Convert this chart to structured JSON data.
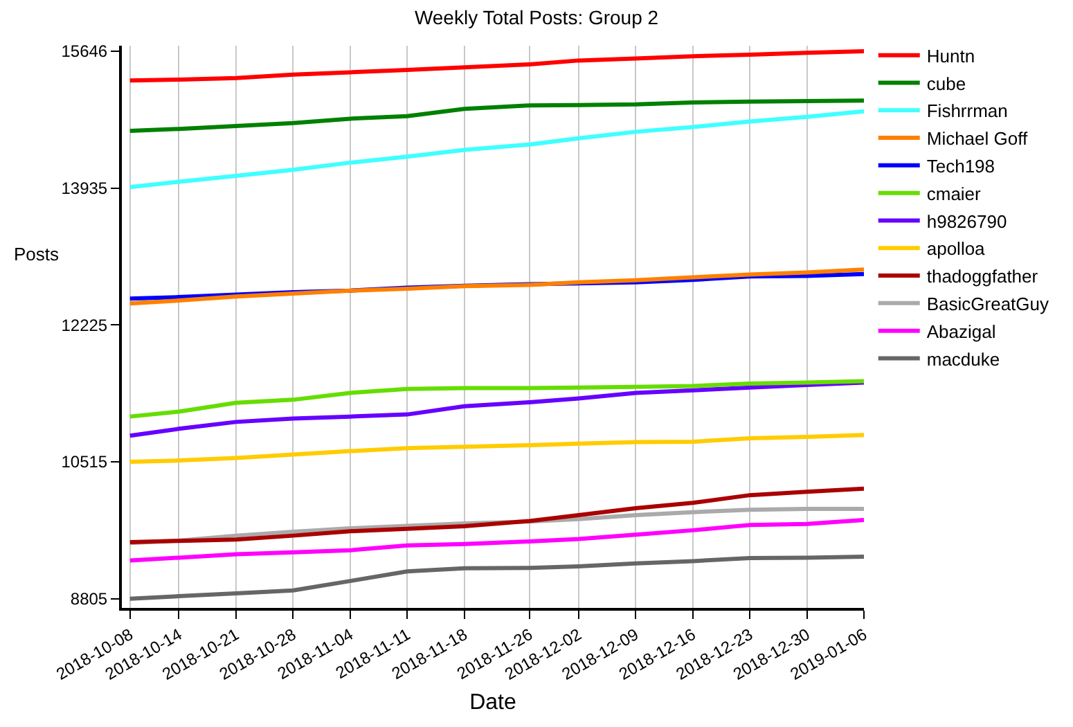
{
  "chart_data": {
    "type": "line",
    "title": "Weekly Total Posts: Group 2",
    "xlabel": "Date",
    "ylabel": "Posts",
    "x": [
      "2018-10-08",
      "2018-10-14",
      "2018-10-21",
      "2018-10-28",
      "2018-11-04",
      "2018-11-11",
      "2018-11-18",
      "2018-11-26",
      "2018-12-02",
      "2018-12-09",
      "2018-12-16",
      "2018-12-23",
      "2018-12-30",
      "2019-01-06"
    ],
    "xlim": [
      "2018-10-07",
      "2019-01-06"
    ],
    "xticks": [
      "2018-10-08",
      "2018-10-14",
      "2018-10-21",
      "2018-10-28",
      "2018-11-04",
      "2018-11-11",
      "2018-11-18",
      "2018-11-26",
      "2018-12-02",
      "2018-12-09",
      "2018-12-16",
      "2018-12-23",
      "2018-12-30",
      "2019-01-06"
    ],
    "ylim": [
      8690,
      15715
    ],
    "yticks": [
      8805,
      10515,
      12225,
      13935,
      15646
    ],
    "grid": "x",
    "legend": "top right",
    "marker": "none",
    "line_style": "solid",
    "series": [
      {
        "name": "Huntn",
        "color": "#ff0000",
        "values": [
          15280,
          15292,
          15311,
          15354,
          15383,
          15413,
          15444,
          15482,
          15530,
          15554,
          15584,
          15603,
          15627,
          15646
        ]
      },
      {
        "name": "cube",
        "color": "#008000",
        "values": [
          14651,
          14675,
          14712,
          14748,
          14803,
          14834,
          14926,
          14969,
          14974,
          14981,
          15005,
          15017,
          15024,
          15029
        ]
      },
      {
        "name": "Fishrrman",
        "color": "#40ffff",
        "values": [
          13948,
          14015,
          14088,
          14165,
          14254,
          14328,
          14413,
          14480,
          14558,
          14639,
          14699,
          14767,
          14827,
          14895
        ]
      },
      {
        "name": "Michael Goff",
        "color": "#ff8000",
        "values": [
          12495,
          12531,
          12581,
          12617,
          12655,
          12679,
          12710,
          12727,
          12758,
          12784,
          12820,
          12856,
          12882,
          12918
        ]
      },
      {
        "name": "Tech198",
        "color": "#0000ff",
        "values": [
          12555,
          12574,
          12605,
          12636,
          12655,
          12691,
          12715,
          12734,
          12746,
          12758,
          12789,
          12832,
          12839,
          12863
        ]
      },
      {
        "name": "cmaier",
        "color": "#66dd00",
        "values": [
          11081,
          11143,
          11253,
          11291,
          11377,
          11425,
          11437,
          11437,
          11444,
          11451,
          11463,
          11494,
          11506,
          11523
        ]
      },
      {
        "name": "h9826790",
        "color": "#6600ff",
        "values": [
          10842,
          10928,
          11014,
          11057,
          11081,
          11107,
          11210,
          11260,
          11308,
          11377,
          11408,
          11444,
          11475,
          11506
        ]
      },
      {
        "name": "apolloa",
        "color": "#ffcc00",
        "values": [
          10515,
          10532,
          10563,
          10606,
          10649,
          10687,
          10704,
          10723,
          10742,
          10761,
          10766,
          10809,
          10826,
          10850
        ]
      },
      {
        "name": "thadoggfather",
        "color": "#aa0000",
        "values": [
          9513,
          9527,
          9544,
          9593,
          9648,
          9679,
          9710,
          9776,
          9850,
          9935,
          10002,
          10099,
          10142,
          10180
        ]
      },
      {
        "name": "BasicGreatGuy",
        "color": "#aaaaaa",
        "values": [
          9501,
          9532,
          9593,
          9641,
          9684,
          9715,
          9746,
          9769,
          9800,
          9850,
          9886,
          9917,
          9928,
          9928
        ]
      },
      {
        "name": "Abazigal",
        "color": "#ff00ff",
        "values": [
          9282,
          9318,
          9361,
          9385,
          9410,
          9470,
          9489,
          9520,
          9551,
          9605,
          9660,
          9727,
          9740,
          9788
        ]
      },
      {
        "name": "macduke",
        "color": "#666666",
        "values": [
          8805,
          8836,
          8872,
          8909,
          9026,
          9147,
          9185,
          9190,
          9209,
          9245,
          9275,
          9313,
          9318,
          9330
        ]
      }
    ]
  }
}
